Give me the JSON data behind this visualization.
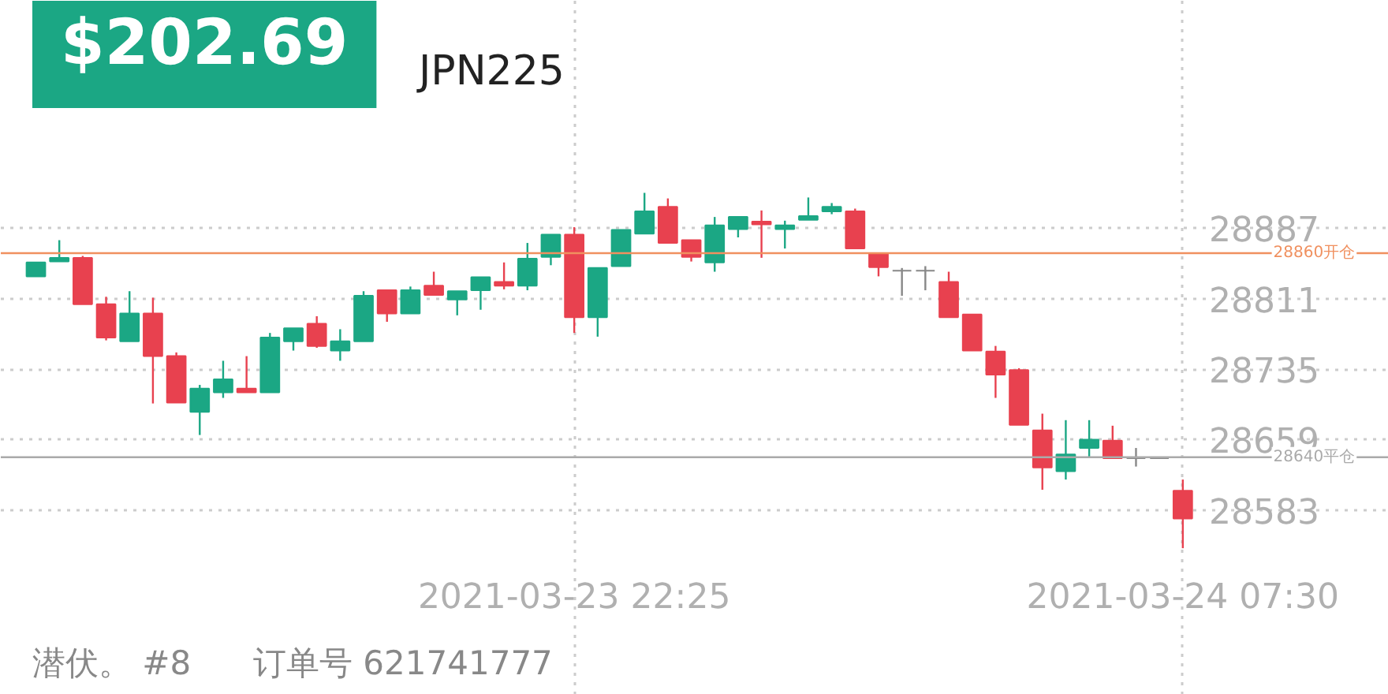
{
  "chart_data": {
    "type": "candlestick",
    "title": "JPN225",
    "annotations": [
      "$202.69",
      "潜伏。 #8",
      "订单号 621741777"
    ],
    "categories": [
      null,
      null,
      null,
      null,
      null,
      null,
      null,
      null,
      null,
      null,
      null,
      null,
      null,
      null,
      null,
      null,
      null,
      null,
      null,
      null,
      null,
      null,
      null,
      "2021-03-23 22:25",
      null,
      null,
      null,
      null,
      null,
      null,
      null,
      null,
      null,
      null,
      null,
      null,
      null,
      null,
      null,
      null,
      null,
      null,
      null,
      null,
      null,
      null,
      null,
      null,
      null,
      "2021-03-24 07:30"
    ],
    "ohlc": [
      [
        28835,
        28850,
        28835,
        28850
      ],
      [
        28851,
        28874,
        28851,
        28855
      ],
      [
        28855,
        28857,
        28805,
        28805
      ],
      [
        28805,
        28813,
        28766,
        28769
      ],
      [
        28765,
        28819,
        28765,
        28795
      ],
      [
        28795,
        28812,
        28698,
        28749
      ],
      [
        28749,
        28753,
        28699,
        28699
      ],
      [
        28689,
        28718,
        28664,
        28714
      ],
      [
        28710,
        28744,
        28704,
        28724
      ],
      [
        28714,
        28749,
        28710,
        28710
      ],
      [
        28710,
        28774,
        28710,
        28769
      ],
      [
        28765,
        28779,
        28755,
        28779
      ],
      [
        28784,
        28792,
        28758,
        28760
      ],
      [
        28755,
        28778,
        28744,
        28765
      ],
      [
        28765,
        28819,
        28765,
        28814
      ],
      [
        28820,
        28820,
        28786,
        28795
      ],
      [
        28795,
        28824,
        28795,
        28820
      ],
      [
        28825,
        28840,
        28815,
        28815
      ],
      [
        28810,
        28819,
        28793,
        28819
      ],
      [
        28820,
        28834,
        28799,
        28834
      ],
      [
        28829,
        28850,
        28821,
        28825
      ],
      [
        28825,
        28871,
        28820,
        28854
      ],
      [
        28856,
        28880,
        28847,
        28880
      ],
      [
        28880,
        28888,
        28774,
        28791
      ],
      [
        28791,
        28844,
        28770,
        28844
      ],
      [
        28846,
        28885,
        28846,
        28885
      ],
      [
        28881,
        28925,
        28881,
        28905
      ],
      [
        28910,
        28919,
        28871,
        28871
      ],
      [
        28874,
        28874,
        28851,
        28856
      ],
      [
        28850,
        28899,
        28840,
        28890
      ],
      [
        28886,
        28899,
        28877,
        28899
      ],
      [
        28894,
        28906,
        28855,
        28891
      ],
      [
        28886,
        28895,
        28865,
        28890
      ],
      [
        28896,
        28920,
        28896,
        28900
      ],
      [
        28905,
        28914,
        28902,
        28910
      ],
      [
        28905,
        28908,
        28865,
        28865
      ],
      [
        28860,
        28860,
        28835,
        28845
      ],
      [
        28841,
        28844,
        28814,
        28841
      ],
      [
        28841,
        28846,
        28820,
        28841
      ],
      [
        28829,
        28840,
        28791,
        28791
      ],
      [
        28794,
        28794,
        28755,
        28755
      ],
      [
        28754,
        28760,
        28704,
        28729
      ],
      [
        28734,
        28736,
        28675,
        28675
      ],
      [
        28669,
        28687,
        28605,
        28629
      ],
      [
        28625,
        28680,
        28616,
        28643
      ],
      [
        28650,
        28680,
        28639,
        28659
      ],
      [
        28658,
        28674,
        28639,
        28639
      ],
      [
        28639,
        28650,
        28630,
        28639
      ],
      [
        28639,
        28639,
        28639,
        28639
      ],
      [
        28604,
        28616,
        28542,
        28574
      ]
    ],
    "colors": [
      "#1ba784",
      "#1ba784",
      "#e8414f",
      "#e8414f",
      "#1ba784",
      "#e8414f",
      "#e8414f",
      "#1ba784",
      "#1ba784",
      "#e8414f",
      "#1ba784",
      "#1ba784",
      "#e8414f",
      "#1ba784",
      "#1ba784",
      "#e8414f",
      "#1ba784",
      "#e8414f",
      "#1ba784",
      "#1ba784",
      "#e8414f",
      "#1ba784",
      "#1ba784",
      "#e8414f",
      "#1ba784",
      "#1ba784",
      "#1ba784",
      "#e8414f",
      "#e8414f",
      "#1ba784",
      "#1ba784",
      "#e8414f",
      "#1ba784",
      "#1ba784",
      "#1ba784",
      "#e8414f",
      "#e8414f",
      "#888888",
      "#888888",
      "#e8414f",
      "#e8414f",
      "#e8414f",
      "#e8414f",
      "#e8414f",
      "#1ba784",
      "#1ba784",
      "#e8414f",
      "#888888",
      "#888888",
      "#e8414f"
    ],
    "ylim": [
      28384,
      29132
    ],
    "yticks": [
      28583,
      28659,
      28735,
      28811,
      28887
    ],
    "grid": true,
    "ref_lines": [
      {
        "axis": "y",
        "value": 28860,
        "label": "28860开仓",
        "color": "#f0905f"
      },
      {
        "axis": "y",
        "value": 28640,
        "label": "28640平仓",
        "color": "#aaaaaa"
      }
    ]
  }
}
